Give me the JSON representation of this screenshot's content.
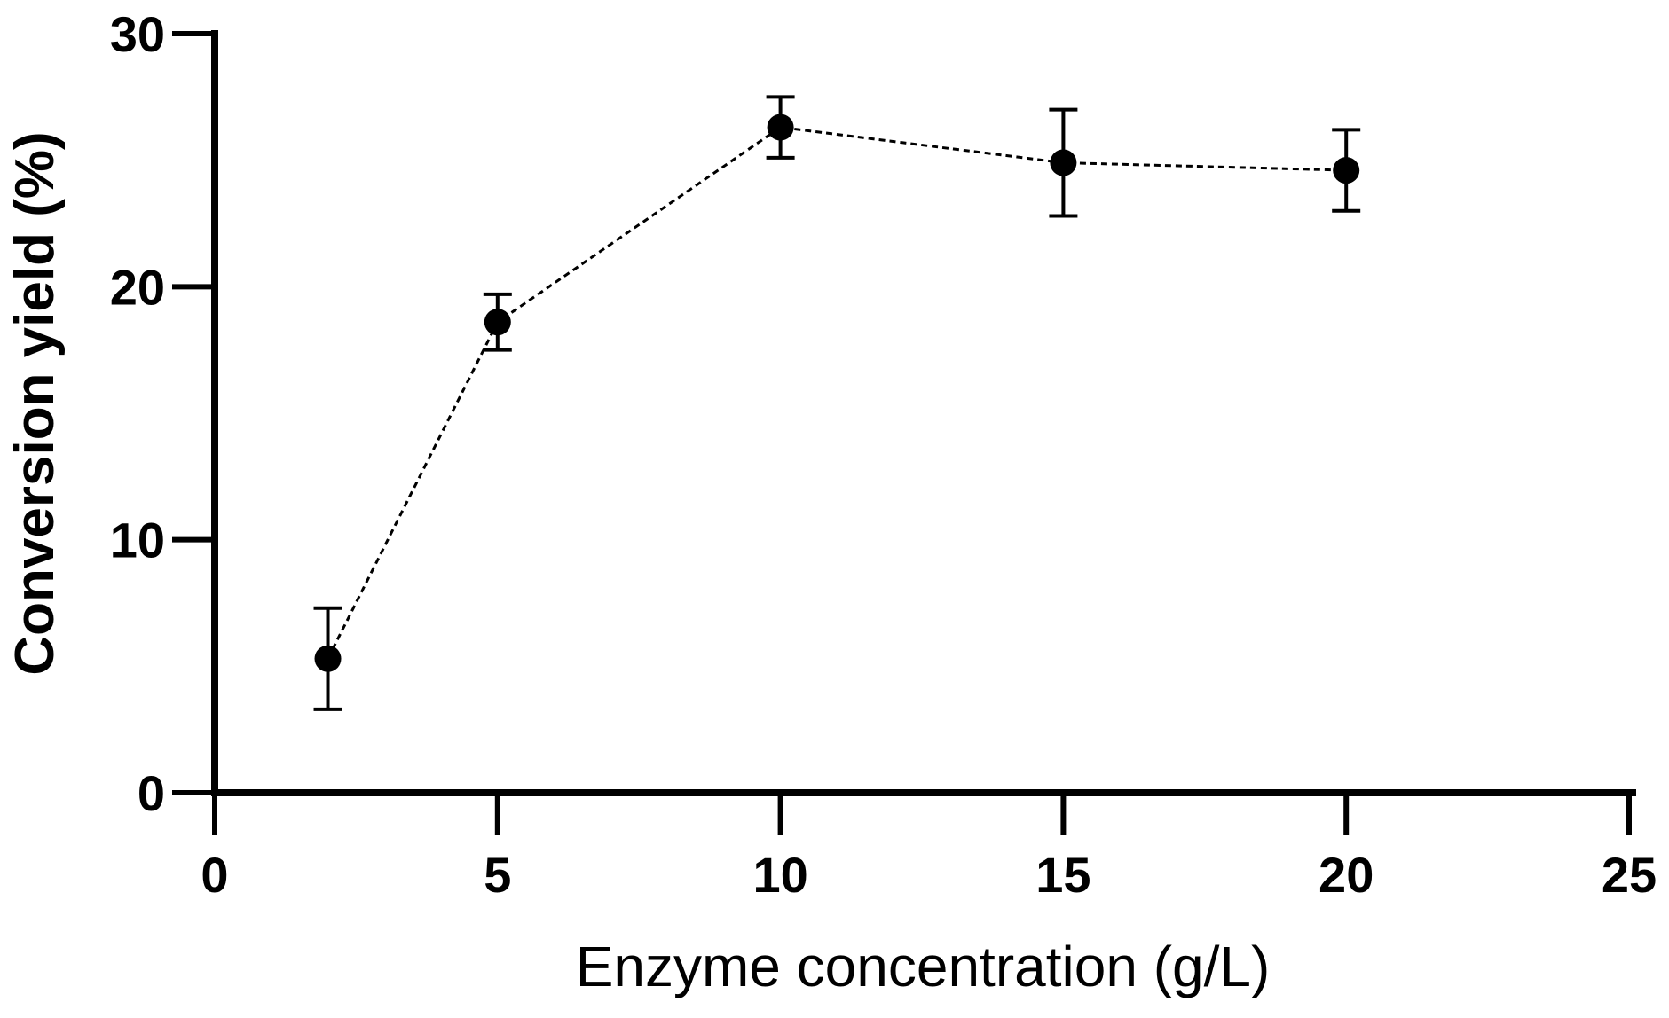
{
  "chart_data": {
    "type": "scatter",
    "x": [
      2,
      5,
      10,
      15,
      20
    ],
    "series": [
      {
        "values": [
          5.3,
          18.6,
          26.3,
          24.9,
          24.6
        ],
        "errors": [
          2.0,
          1.1,
          1.2,
          2.1,
          1.6
        ]
      }
    ],
    "connector": "dashed-line",
    "marker": "filled-circle",
    "xlabel": "Enzyme concentration (g/L)",
    "ylabel": "Conversion yield (%)",
    "xlim": [
      0,
      25
    ],
    "ylim": [
      0,
      30
    ],
    "xticks": [
      0,
      5,
      10,
      15,
      20,
      25
    ],
    "yticks": [
      0,
      10,
      20,
      30
    ],
    "grid": false,
    "colors": {
      "axis": "#000000",
      "marker": "#000000",
      "line": "#000000"
    }
  }
}
